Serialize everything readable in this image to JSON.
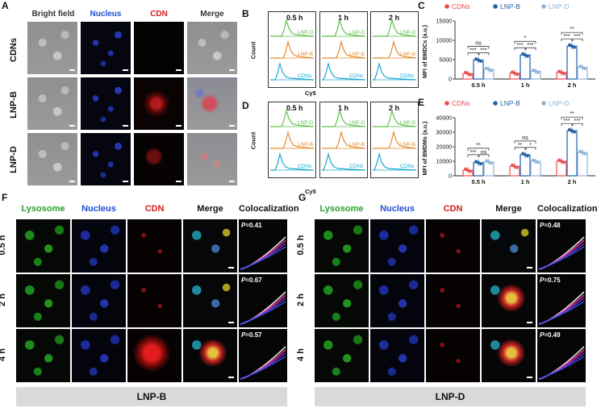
{
  "panelA": {
    "letter": "A",
    "columns": [
      "Bright field",
      "Nucleus",
      "CDN",
      "Merge"
    ],
    "column_colors": [
      "#333333",
      "#1f4fd1",
      "#d11f1f",
      "#333333"
    ],
    "rows": [
      "CDNs",
      "LNP-B",
      "LNP-D"
    ]
  },
  "panelB": {
    "letter": "B",
    "times": [
      "0.5 h",
      "1 h",
      "2 h"
    ],
    "y_label": "Count",
    "x_label": "Cy5",
    "traces": [
      "LNP-D",
      "LNP-B",
      "CDNs"
    ],
    "colors": {
      "LNP-D": "#5fc24a",
      "LNP-B": "#e58a2a",
      "CDNs": "#1ba8d1"
    }
  },
  "panelD": {
    "letter": "D",
    "times": [
      "0.5 h",
      "1 h",
      "2 h"
    ],
    "y_label": "Count",
    "x_label": "Cy5",
    "traces": [
      "LNP-D",
      "LNP-B",
      "CDNs"
    ]
  },
  "panelC": {
    "letter": "C",
    "legend": [
      "CDNs",
      "LNP-B",
      "LNP-D"
    ],
    "ylabel": "MFI of BMDCs (a.u.)",
    "yticks": [
      "0",
      "5000",
      "10000",
      "15000"
    ],
    "sig": [
      "ns",
      "***",
      "***",
      "*",
      "***",
      "***",
      "**",
      "***",
      "***"
    ]
  },
  "panelE": {
    "letter": "E",
    "legend": [
      "CDNs",
      "LNP-B",
      "LNP-D"
    ],
    "ylabel": "MFI of BMDMs (a.u.)",
    "yticks": [
      "0",
      "10000",
      "20000",
      "30000",
      "40000"
    ],
    "sig": [
      "**",
      "***",
      "ns",
      "ns",
      "**",
      "*",
      "**",
      "***",
      "***"
    ]
  },
  "chart_data": [
    {
      "type": "bar",
      "title": "",
      "categories": [
        "0.5 h",
        "1 h",
        "2 h"
      ],
      "ylabel": "MFI of BMDCs (a.u.)",
      "ylim": [
        0,
        15000
      ],
      "legend": "top",
      "series": [
        {
          "name": "CDNs",
          "values": [
            1400,
            1500,
            1700
          ],
          "color": "#ee4b4b"
        },
        {
          "name": "LNP-B",
          "values": [
            4900,
            6200,
            8500
          ],
          "color": "#1f5fa8"
        },
        {
          "name": "LNP-D",
          "values": [
            2500,
            2000,
            3000
          ],
          "color": "#8fb4d9"
        }
      ]
    },
    {
      "type": "bar",
      "title": "",
      "categories": [
        "0.5 h",
        "1 h",
        "2 h"
      ],
      "ylabel": "MFI of BMDMs (a.u.)",
      "ylim": [
        0,
        40000
      ],
      "legend": "top",
      "series": [
        {
          "name": "CDNs",
          "values": [
            3800,
            6500,
            10000
          ],
          "color": "#ee4b4b"
        },
        {
          "name": "LNP-B",
          "values": [
            9000,
            14500,
            31000
          ],
          "color": "#1f5fa8"
        },
        {
          "name": "LNP-D",
          "values": [
            9500,
            10000,
            16000
          ],
          "color": "#8fb4d9"
        }
      ]
    }
  ],
  "panelF": {
    "letter": "F",
    "columns": [
      "Lysosome",
      "Nucleus",
      "CDN",
      "Merge",
      "Colocalization"
    ],
    "column_colors": [
      "#2aa02a",
      "#1f4fd1",
      "#d11f1f",
      "#111111",
      "#111111"
    ],
    "rows": [
      "0.5 h",
      "2 h",
      "4 h"
    ],
    "p_prefix": "P",
    "p_values": [
      "=0.41",
      "=0.67",
      "=0.57"
    ],
    "footer": "LNP-B"
  },
  "panelG": {
    "letter": "G",
    "columns": [
      "Lysosome",
      "Nucleus",
      "CDN",
      "Merge",
      "Colocalization"
    ],
    "column_colors": [
      "#2aa02a",
      "#1f4fd1",
      "#d11f1f",
      "#111111",
      "#111111"
    ],
    "rows": [
      "0.5 h",
      "2 h",
      "4 h"
    ],
    "p_prefix": "P",
    "p_values": [
      "=0.48",
      "=0.75",
      "=0.49"
    ],
    "footer": "LNP-D"
  }
}
